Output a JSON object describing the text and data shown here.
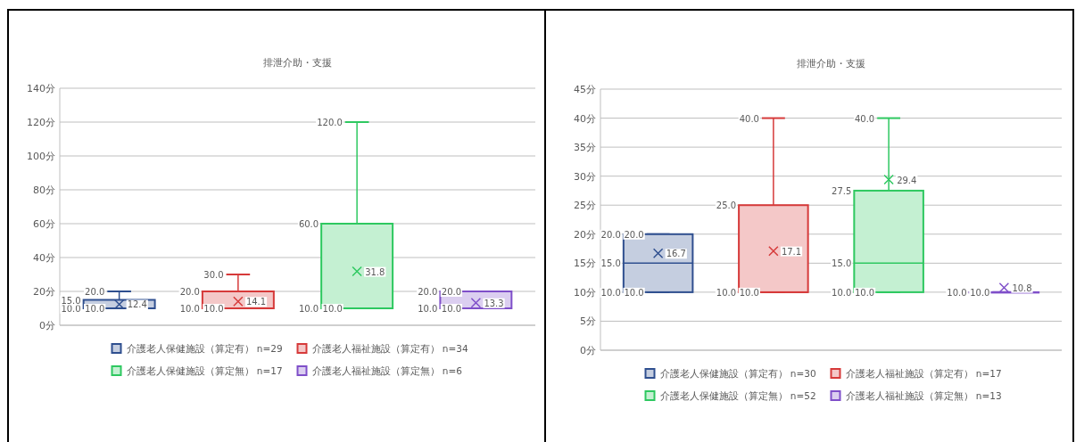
{
  "chart_data": [
    {
      "type": "box",
      "title": "排泄介助・支援",
      "categories": [
        null
      ],
      "ylim": [
        0,
        140
      ],
      "yticks": [
        {
          "value": 0,
          "label": "0分"
        },
        {
          "value": 20,
          "label": "20分"
        },
        {
          "value": 40,
          "label": "40分"
        },
        {
          "value": 60,
          "label": "60分"
        },
        {
          "value": 80,
          "label": "80分"
        },
        {
          "value": 100,
          "label": "100分"
        },
        {
          "value": 120,
          "label": "120分"
        },
        {
          "value": 140,
          "label": "140分"
        }
      ],
      "grid": "y",
      "legend": "bottom",
      "marker": "cross",
      "series": [
        {
          "name": "介護老人保健施設（算定有） n=29",
          "color": "#2f4f8f",
          "boxes": [
            {
              "low": 10,
              "q1": 10,
              "median": 10,
              "q3": 15,
              "high": 20,
              "mean": 12.4
            }
          ]
        },
        {
          "name": "介護老人福祉施設（算定有） n=34",
          "color": "#d63a3a",
          "boxes": [
            {
              "low": 10,
              "q1": 10,
              "median": 10,
              "q3": 20,
              "high": 30,
              "mean": 14.1
            }
          ]
        },
        {
          "name": "介護老人保健施設（算定無） n=17",
          "color": "#2ec860",
          "boxes": [
            {
              "low": 10,
              "q1": 10,
              "median": 10,
              "q3": 60,
              "high": 120,
              "mean": 31.8
            }
          ]
        },
        {
          "name": "介護老人福祉施設（算定無） n=6",
          "color": "#7f4fc9",
          "boxes": [
            {
              "low": 10,
              "q1": 10,
              "median": 10,
              "q3": 20,
              "high": 20,
              "mean": 13.3
            }
          ]
        }
      ],
      "annotations": [
        {
          "text": "10.0",
          "y": 10
        },
        {
          "text": "10.0",
          "y": 10
        },
        {
          "text": "15.0",
          "y": 15
        },
        {
          "text": "20.0",
          "y": 20
        },
        {
          "text": "12.4",
          "y": 12.4
        },
        {
          "text": "10.0",
          "y": 10
        },
        {
          "text": "10.0",
          "y": 10
        },
        {
          "text": "20.0",
          "y": 20
        },
        {
          "text": "30.0",
          "y": 30
        },
        {
          "text": "14.1",
          "y": 14.1
        },
        {
          "text": "10.0",
          "y": 10
        },
        {
          "text": "10.0",
          "y": 10
        },
        {
          "text": "60.0",
          "y": 60
        },
        {
          "text": "120.0",
          "y": 120
        },
        {
          "text": "31.8",
          "y": 31.8
        },
        {
          "text": "10.0",
          "y": 10
        },
        {
          "text": "10.0",
          "y": 10
        },
        {
          "text": "20.0",
          "y": 20
        },
        {
          "text": "20.0",
          "y": 20
        },
        {
          "text": "13.3",
          "y": 13.3
        }
      ]
    },
    {
      "type": "box",
      "title": "排泄介助・支援",
      "categories": [
        null
      ],
      "ylim": [
        0,
        45
      ],
      "yticks": [
        {
          "value": 0,
          "label": "0分"
        },
        {
          "value": 5,
          "label": "5分"
        },
        {
          "value": 10,
          "label": "10分"
        },
        {
          "value": 15,
          "label": "15分"
        },
        {
          "value": 20,
          "label": "20分"
        },
        {
          "value": 25,
          "label": "25分"
        },
        {
          "value": 30,
          "label": "30分"
        },
        {
          "value": 35,
          "label": "35分"
        },
        {
          "value": 40,
          "label": "40分"
        },
        {
          "value": 45,
          "label": "45分"
        }
      ],
      "grid": "y",
      "legend": "bottom",
      "marker": "cross",
      "series": [
        {
          "name": "介護老人保健施設（算定有） n=30",
          "color": "#2f4f8f",
          "boxes": [
            {
              "low": 10,
              "q1": 10,
              "median": 15,
              "q3": 20,
              "high": 20,
              "mean": 16.7
            }
          ]
        },
        {
          "name": "介護老人福祉施設（算定有） n=17",
          "color": "#d63a3a",
          "boxes": [
            {
              "low": 10,
              "q1": 10,
              "median": 10,
              "q3": 25,
              "high": 40,
              "mean": 17.1
            }
          ]
        },
        {
          "name": "介護老人保健施設（算定無） n=52",
          "color": "#2ec860",
          "boxes": [
            {
              "low": 10,
              "q1": 10,
              "median": 15,
              "q3": 27.5,
              "high": 40,
              "mean": 29.4
            }
          ]
        },
        {
          "name": "介護老人福祉施設（算定無） n=13",
          "color": "#7f4fc9",
          "boxes": [
            {
              "low": 10,
              "q1": 10,
              "median": 10,
              "q3": 10,
              "high": 10,
              "mean": 10.8
            }
          ]
        }
      ],
      "annotations": [
        {
          "text": "10.0",
          "y": 10
        },
        {
          "text": "10.0",
          "y": 10
        },
        {
          "text": "15.0",
          "y": 15
        },
        {
          "text": "20.0",
          "y": 20
        },
        {
          "text": "20.0",
          "y": 20
        },
        {
          "text": "16.7",
          "y": 16.7
        },
        {
          "text": "10.0",
          "y": 10
        },
        {
          "text": "10.0",
          "y": 10
        },
        {
          "text": "25.0",
          "y": 25
        },
        {
          "text": "40.0",
          "y": 40
        },
        {
          "text": "17.1",
          "y": 17.1
        },
        {
          "text": "10.0",
          "y": 10
        },
        {
          "text": "10.0",
          "y": 10
        },
        {
          "text": "15.0",
          "y": 15
        },
        {
          "text": "27.5",
          "y": 27.5
        },
        {
          "text": "40.0",
          "y": 40
        },
        {
          "text": "29.4",
          "y": 29.4
        },
        {
          "text": "10.0",
          "y": 10
        },
        {
          "text": "10.0",
          "y": 10
        },
        {
          "text": "10.8",
          "y": 10.8
        }
      ]
    }
  ]
}
